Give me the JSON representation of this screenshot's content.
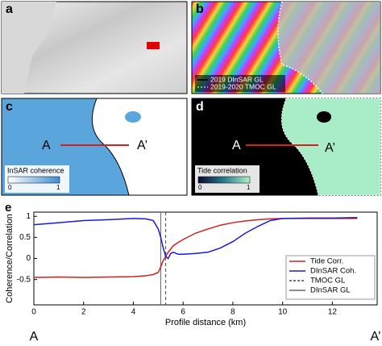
{
  "panels": [
    {
      "letter": "a"
    },
    {
      "letter": "b",
      "legend": [
        "2019 DInSAR GL",
        "2019-2020 TMOC GL"
      ]
    },
    {
      "letter": "c",
      "point_a": "A",
      "point_b": "A’",
      "colorbar_title": "InSAR coherence",
      "colorbar_min": "0",
      "colorbar_max": "1"
    },
    {
      "letter": "d",
      "point_a": "A",
      "point_b": "A’",
      "colorbar_title": "Tide correlation",
      "colorbar_min": "0",
      "colorbar_max": "1"
    }
  ],
  "chart_data": {
    "type": "line",
    "panel_letter": "e",
    "x_label": "Profile distance (km)",
    "y_label": "Coherence/Correlation",
    "start_label": "A",
    "end_label": "A’",
    "x": [
      0,
      1,
      2,
      3,
      4,
      4.5,
      4.8,
      5.0,
      5.1,
      5.2,
      5.3,
      5.4,
      5.5,
      5.6,
      5.8,
      6,
      6.5,
      7,
      7.5,
      8,
      8.5,
      9,
      9.5,
      10,
      11,
      12,
      13
    ],
    "series": [
      {
        "name": "Tide Corr.",
        "color": "#d62020",
        "values": [
          -0.45,
          -0.44,
          -0.45,
          -0.44,
          -0.43,
          -0.41,
          -0.38,
          -0.33,
          -0.2,
          -0.05,
          0.05,
          0.15,
          0.22,
          0.3,
          0.38,
          0.45,
          0.6,
          0.7,
          0.79,
          0.85,
          0.89,
          0.92,
          0.94,
          0.95,
          0.95,
          0.95,
          0.95
        ]
      },
      {
        "name": "DInSAR Coh.",
        "color": "#1a1adb",
        "values": [
          0.8,
          0.85,
          0.9,
          0.92,
          0.95,
          0.94,
          0.9,
          0.7,
          0.5,
          0.25,
          0.05,
          0.0,
          0.12,
          0.15,
          0.1,
          0.1,
          0.12,
          0.15,
          0.25,
          0.4,
          0.6,
          0.76,
          0.9,
          0.95,
          0.96,
          0.96,
          0.97
        ]
      }
    ],
    "vlines": [
      {
        "name": "TMOC GL",
        "x": 5.3,
        "color": "#444444",
        "dash": true
      },
      {
        "name": "DInSAR GL",
        "x": 5.1,
        "color": "#666666",
        "dash": false
      }
    ],
    "xlim": [
      0,
      13.8
    ],
    "ylim": [
      -1.1,
      1.1
    ],
    "xticks": [
      0,
      2,
      4,
      6,
      8,
      10,
      12
    ],
    "yticks": [
      -0.5,
      0,
      0.5,
      1
    ]
  }
}
